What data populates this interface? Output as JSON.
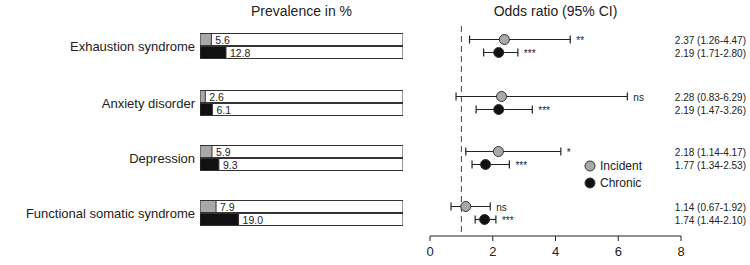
{
  "chart_data": [
    {
      "type": "bar",
      "title": "Prevalence in %",
      "orientation": "horizontal",
      "categories": [
        "Exhaustion syndrome",
        "Anxiety disorder",
        "Depression",
        "Functional somatic syndrome"
      ],
      "series": [
        {
          "name": "Incident",
          "color": "#a9a9a9",
          "values": [
            5.6,
            2.6,
            5.9,
            7.9
          ],
          "value_labels": [
            "5.6",
            "2.6",
            "5.9",
            "7.9"
          ]
        },
        {
          "name": "Chronic",
          "color": "#111111",
          "values": [
            12.8,
            6.1,
            9.3,
            19.0
          ],
          "value_labels": [
            "12.8",
            "6.1",
            "9.3",
            "19.0"
          ]
        }
      ],
      "xlim": [
        0,
        100
      ],
      "data_labels": true,
      "tick_labels": "y"
    },
    {
      "type": "scatter",
      "title": "Odds ratio (95% CI)",
      "categories": [
        "Exhaustion syndrome",
        "Anxiety disorder",
        "Depression",
        "Functional somatic syndrome"
      ],
      "series": [
        {
          "name": "Incident",
          "color": "#a9a9a9",
          "marker": "circle",
          "values": [
            2.37,
            2.28,
            2.18,
            1.14
          ],
          "ci_low": [
            1.26,
            0.83,
            1.14,
            0.67
          ],
          "ci_high": [
            4.47,
            6.29,
            4.17,
            1.92
          ],
          "value_labels": [
            "2.37 (1.26-4.47)",
            "2.28 (0.83-6.29)",
            "2.18 (1.14-4.17)",
            "1.14 (0.67-1.92)"
          ],
          "significance": [
            "**",
            "ns",
            "*",
            "ns"
          ]
        },
        {
          "name": "Chronic",
          "color": "#111111",
          "marker": "circle",
          "values": [
            2.19,
            2.19,
            1.77,
            1.74
          ],
          "ci_low": [
            1.71,
            1.47,
            1.34,
            1.44
          ],
          "ci_high": [
            2.8,
            3.26,
            2.53,
            2.1
          ],
          "value_labels": [
            "2.19 (1.71-2.80)",
            "2.19 (1.47-3.26)",
            "1.77 (1.34-2.53)",
            "1.74 (1.44-2.10)"
          ],
          "significance": [
            "***",
            "***",
            "***",
            "***"
          ]
        }
      ],
      "xlim": [
        0,
        8
      ],
      "xticks": [
        0,
        2,
        4,
        6,
        8
      ],
      "reference_line": 1,
      "legend": "right",
      "tick_labels": "x"
    }
  ]
}
